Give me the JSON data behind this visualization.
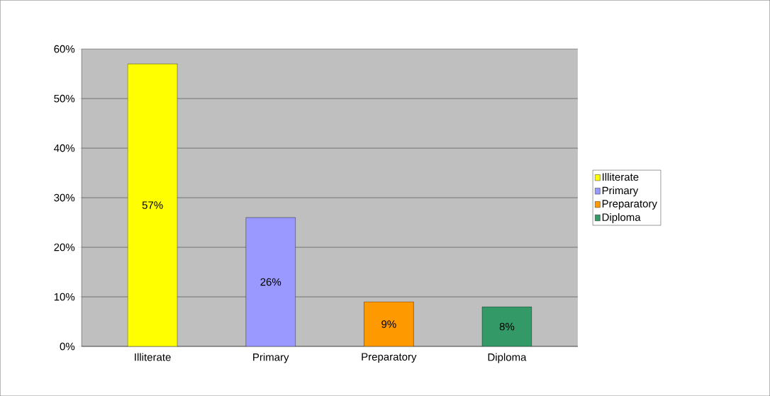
{
  "chart_data": {
    "type": "bar",
    "categories": [
      "Illiterate",
      "Primary",
      "Preparatory",
      "Diploma"
    ],
    "series": [
      {
        "name": "Illiterate",
        "color": "#ffff00",
        "values": [
          57,
          null,
          null,
          null
        ],
        "value_labels": [
          "57%",
          null,
          null,
          null
        ]
      },
      {
        "name": "Primary",
        "color": "#9999ff",
        "values": [
          null,
          26,
          null,
          null
        ],
        "value_labels": [
          null,
          "26%",
          null,
          null
        ]
      },
      {
        "name": "Preparatory",
        "color": "#ff9900",
        "values": [
          null,
          null,
          9,
          null
        ],
        "value_labels": [
          null,
          null,
          "9%",
          null
        ]
      },
      {
        "name": "Diploma",
        "color": "#339966",
        "values": [
          null,
          null,
          null,
          8
        ],
        "value_labels": [
          null,
          null,
          null,
          "8%"
        ]
      }
    ],
    "ylim": [
      0,
      60
    ],
    "yticks": [
      {
        "value": 0,
        "label": "0%"
      },
      {
        "value": 10,
        "label": "10%"
      },
      {
        "value": 20,
        "label": "20%"
      },
      {
        "value": 30,
        "label": "30%"
      },
      {
        "value": 40,
        "label": "40%"
      },
      {
        "value": 50,
        "label": "50%"
      },
      {
        "value": 60,
        "label": "60%"
      }
    ],
    "grid": "y",
    "legend": "right"
  }
}
